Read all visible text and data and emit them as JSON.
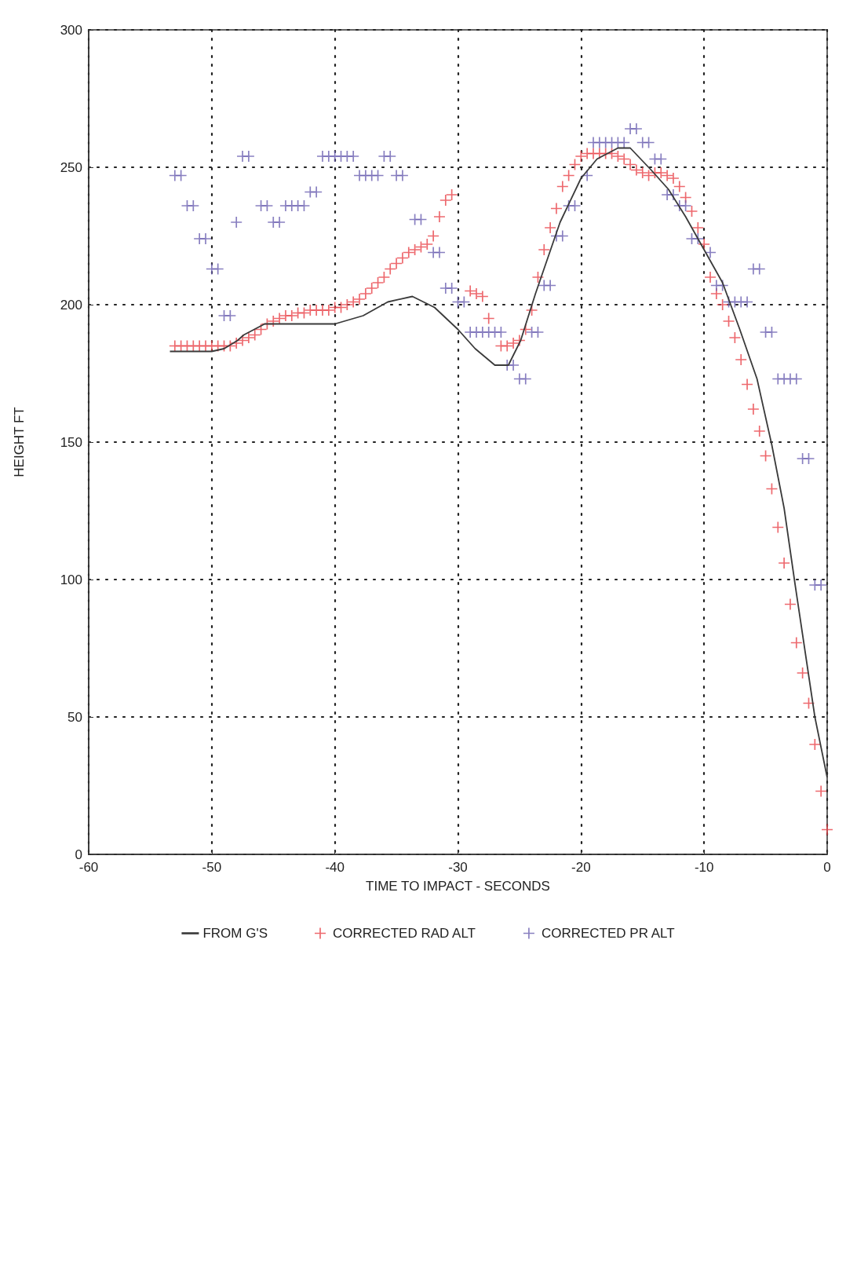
{
  "chart_data": {
    "type": "scatter",
    "xlabel": "TIME TO IMPACT - SECONDS",
    "ylabel": "HEIGHT FT",
    "xlim": [
      -60,
      0
    ],
    "xticks": [
      -60,
      -50,
      -40,
      -30,
      -20,
      -10,
      0
    ],
    "ylim": [
      0,
      300
    ],
    "yticks": [
      0,
      50,
      100,
      150,
      200,
      250,
      300
    ],
    "grid": true,
    "legend": "bottom",
    "series": [
      {
        "name": "FROM G'S",
        "type": "line",
        "marker": "none",
        "line_style": "solid",
        "color": "#3a3a3a",
        "x": [
          0,
          -1,
          -2,
          -2.6,
          -3.5,
          -4.5,
          -5.7,
          -7.1,
          -8.5,
          -10,
          -11.5,
          -12.9,
          -14.3,
          -16,
          -17,
          -18.7,
          -20,
          -21.7,
          -23.7,
          -24.9,
          -25.9,
          -27,
          -28.6,
          -30,
          -31.9,
          -33.7,
          -35.7,
          -37.7,
          -40,
          -42.8,
          -45.7,
          -47.4,
          -47.9,
          -49,
          -50,
          -53.4
        ],
        "values": [
          28,
          50,
          80,
          98,
          126,
          149,
          173,
          191,
          208,
          220,
          232,
          242,
          249,
          257,
          257,
          253,
          246,
          230,
          204,
          187,
          178,
          178,
          184,
          191,
          199,
          203,
          201,
          196,
          193,
          193,
          193,
          189,
          187,
          184,
          183,
          183
        ]
      },
      {
        "name": "CORRECTED RAD ALT",
        "marker": "cross",
        "color": "#e8434a",
        "x": [
          0,
          -0.5,
          -1,
          -1.5,
          -2,
          -2.5,
          -3,
          -3.5,
          -4,
          -4.5,
          -5,
          -5.5,
          -6,
          -6.5,
          -7,
          -7.5,
          -8,
          -8.5,
          -9,
          -9.5,
          -10,
          -10.5,
          -11,
          -11.5,
          -12,
          -12.5,
          -13,
          -13.5,
          -14,
          -14.5,
          -15,
          -15.5,
          -16,
          -16.5,
          -17,
          -17.5,
          -18,
          -18.5,
          -19,
          -19.5,
          -20,
          -20.5,
          -21,
          -21.5,
          -22,
          -22.5,
          -23,
          -23.5,
          -24,
          -24.5,
          -25,
          -25.5,
          -26,
          -26.5,
          -27.5,
          -28,
          -28.5,
          -29,
          -30.5,
          -31,
          -31.5,
          -32,
          -32.5,
          -33,
          -33.5,
          -34,
          -34.5,
          -35,
          -35.5,
          -36,
          -36.5,
          -37,
          -37.5,
          -38,
          -38.5,
          -39,
          -39.5,
          -40,
          -40.5,
          -41,
          -41.5,
          -42,
          -42.5,
          -43,
          -43.5,
          -44,
          -44.5,
          -45,
          -45.5,
          -46,
          -46.5,
          -47,
          -47.5,
          -48,
          -48.5,
          -49,
          -49.5,
          -50,
          -50.5,
          -51,
          -51.5,
          -52,
          -52.5,
          -53
        ],
        "values": [
          9,
          23,
          40,
          55,
          66,
          77,
          91,
          106,
          119,
          133,
          145,
          154,
          162,
          171,
          180,
          188,
          194,
          200,
          204,
          210,
          222,
          228,
          234,
          239,
          243,
          246,
          247,
          248,
          248,
          247,
          248,
          249,
          251,
          253,
          254,
          255,
          255,
          255,
          255,
          255,
          254,
          251,
          247,
          243,
          235,
          228,
          220,
          210,
          198,
          191,
          187,
          186,
          185,
          185,
          195,
          203,
          204,
          205,
          240,
          238,
          232,
          225,
          222,
          221,
          220,
          219,
          217,
          215,
          213,
          210,
          208,
          206,
          204,
          202,
          201,
          200,
          199,
          199,
          198,
          198,
          198,
          198,
          197,
          197,
          196,
          196,
          195,
          194,
          193,
          191,
          189,
          188,
          187,
          186,
          185,
          185,
          185,
          185,
          185,
          185,
          185,
          185,
          185,
          185
        ]
      },
      {
        "name": "CORRECTED PR ALT",
        "marker": "cross",
        "color": "#6a5fb0",
        "x": [
          -0.5,
          -1,
          -1.5,
          -2,
          -2.5,
          -3,
          -3.5,
          -4,
          -4.5,
          -5,
          -5.5,
          -6,
          -6.5,
          -7,
          -7.5,
          -8,
          -8.5,
          -9,
          -9.5,
          -10.5,
          -11,
          -11.5,
          -12,
          -12.5,
          -13,
          -13.5,
          -14,
          -14.5,
          -15,
          -15.5,
          -16,
          -16.5,
          -17,
          -17.5,
          -18,
          -18.5,
          -19,
          -19.5,
          -20.5,
          -21,
          -21.5,
          -22,
          -22.5,
          -23,
          -23.5,
          -24,
          -24.5,
          -25,
          -25.5,
          -26,
          -26.5,
          -27,
          -27.5,
          -28,
          -28.5,
          -29,
          -29.5,
          -30,
          -30.5,
          -31,
          -31.5,
          -32,
          -33,
          -33.5,
          -34.5,
          -35,
          -35.5,
          -36,
          -36.5,
          -37,
          -37.5,
          -38,
          -38.5,
          -39,
          -39.5,
          -40,
          -40.5,
          -41,
          -41.5,
          -42,
          -42.5,
          -43,
          -43.5,
          -44,
          -44.5,
          -45,
          -45.5,
          -46,
          -47,
          -47.5,
          -48,
          -48.5,
          -49,
          -49.5,
          -50,
          -50.5,
          -51,
          -51.5,
          -52,
          -52.5,
          -53
        ],
        "values": [
          98,
          98,
          144,
          144,
          173,
          173,
          173,
          173,
          190,
          190,
          213,
          213,
          201,
          201,
          201,
          201,
          207,
          207,
          219,
          224,
          224,
          236,
          236,
          240,
          240,
          253,
          253,
          259,
          259,
          264,
          264,
          259,
          259,
          259,
          259,
          259,
          259,
          247,
          236,
          236,
          225,
          225,
          207,
          207,
          190,
          190,
          173,
          173,
          178,
          178,
          190,
          190,
          190,
          190,
          190,
          190,
          201,
          201,
          206,
          206,
          219,
          219,
          231,
          231,
          247,
          247,
          254,
          254,
          247,
          247,
          247,
          247,
          254,
          254,
          254,
          254,
          254,
          254,
          241,
          241,
          236,
          236,
          236,
          236,
          230,
          230,
          236,
          236,
          254,
          254,
          230,
          196,
          196,
          213,
          213,
          224,
          224,
          236,
          236,
          247,
          247
        ]
      }
    ]
  }
}
